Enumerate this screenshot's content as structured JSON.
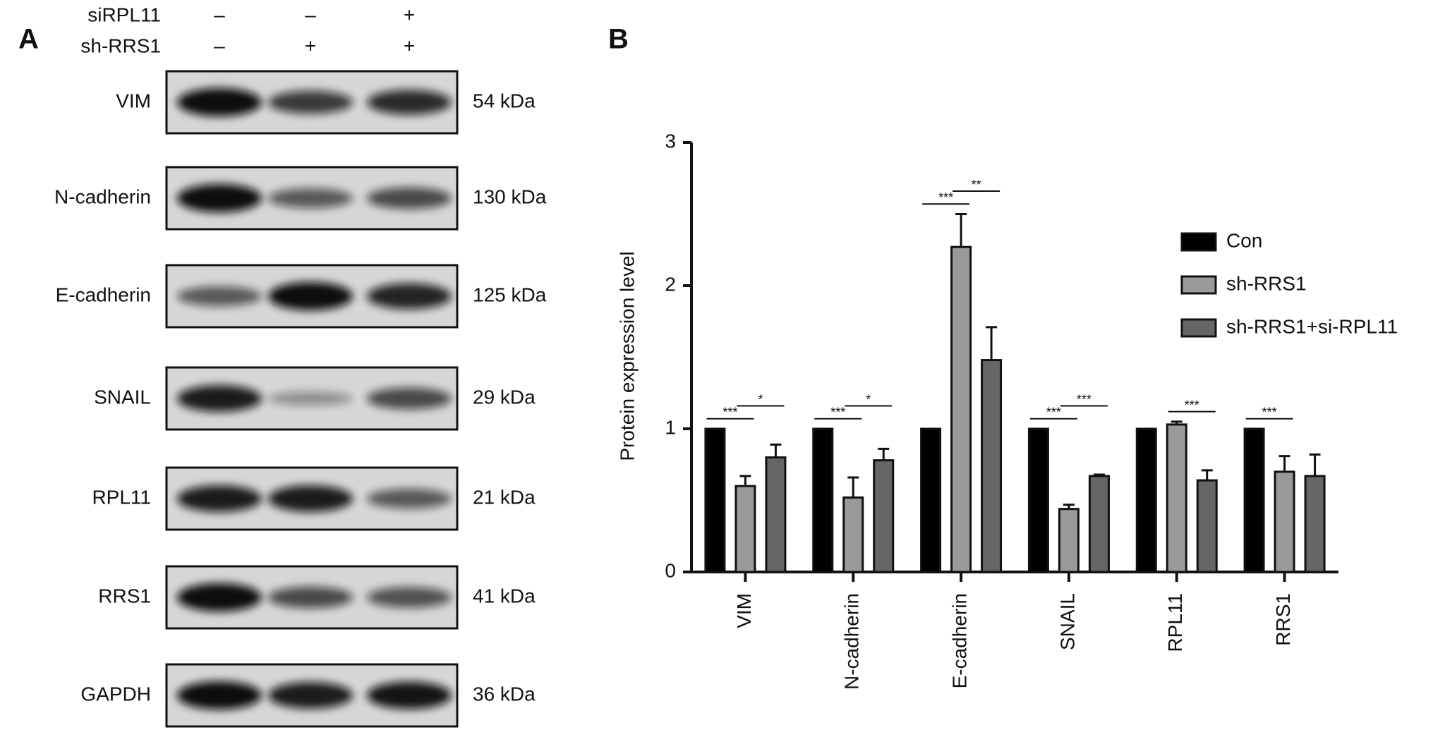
{
  "panel_a": {
    "label": "A",
    "conditions": [
      {
        "name": "siRPL11",
        "signs": [
          "–",
          "–",
          "+"
        ]
      },
      {
        "name": "sh-RRS1",
        "signs": [
          "–",
          "+",
          "+"
        ]
      }
    ],
    "blots": [
      {
        "protein": "VIM",
        "size": "54 kDa"
      },
      {
        "protein": "N-cadherin",
        "size": "130 kDa"
      },
      {
        "protein": "E-cadherin",
        "size": "125 kDa"
      },
      {
        "protein": "SNAIL",
        "size": "29 kDa"
      },
      {
        "protein": "RPL11",
        "size": "21 kDa"
      },
      {
        "protein": "RRS1",
        "size": "41 kDa"
      },
      {
        "protein": "GAPDH",
        "size": "36 kDa"
      }
    ]
  },
  "chart_data": {
    "type": "bar",
    "panel_label": "B",
    "y_label": "Protein expression level",
    "categories": [
      "VIM",
      "N-cadherin",
      "E-cadherin",
      "SNAIL",
      "RPL11",
      "RRS1"
    ],
    "series": [
      {
        "name": "Con",
        "color": "#000000",
        "values": [
          1,
          1,
          1,
          1,
          1,
          1
        ],
        "errors": [
          0,
          0,
          0,
          0,
          0,
          0
        ]
      },
      {
        "name": "sh-RRS1",
        "color": "#9a9a9a",
        "values": [
          0.6,
          0.52,
          2.27,
          0.44,
          1.03,
          0.7
        ],
        "errors": [
          0.07,
          0.14,
          0.23,
          0.03,
          0.02,
          0.11
        ]
      },
      {
        "name": "sh-RRS1+si-RPL11",
        "color": "#666666",
        "values": [
          0.8,
          0.78,
          1.48,
          0.67,
          0.64,
          0.67
        ],
        "errors": [
          0.09,
          0.08,
          0.23,
          0.01,
          0.07,
          0.15
        ]
      }
    ],
    "ylim": [
      0,
      3
    ],
    "yticks": [
      0,
      1,
      2,
      3
    ],
    "grid": false,
    "legend": "upper right",
    "annotations": [
      {
        "category": 0,
        "pair": [
          0,
          1
        ],
        "text": "***"
      },
      {
        "category": 0,
        "pair": [
          1,
          2
        ],
        "text": "*"
      },
      {
        "category": 1,
        "pair": [
          0,
          1
        ],
        "text": "***"
      },
      {
        "category": 1,
        "pair": [
          1,
          2
        ],
        "text": "*"
      },
      {
        "category": 2,
        "pair": [
          0,
          1
        ],
        "text": "***"
      },
      {
        "category": 2,
        "pair": [
          1,
          2
        ],
        "text": "**"
      },
      {
        "category": 3,
        "pair": [
          0,
          1
        ],
        "text": "***"
      },
      {
        "category": 3,
        "pair": [
          1,
          2
        ],
        "text": "***"
      },
      {
        "category": 4,
        "pair": [
          1,
          2
        ],
        "text": "***"
      },
      {
        "category": 5,
        "pair": [
          0,
          1
        ],
        "text": "***"
      }
    ]
  }
}
